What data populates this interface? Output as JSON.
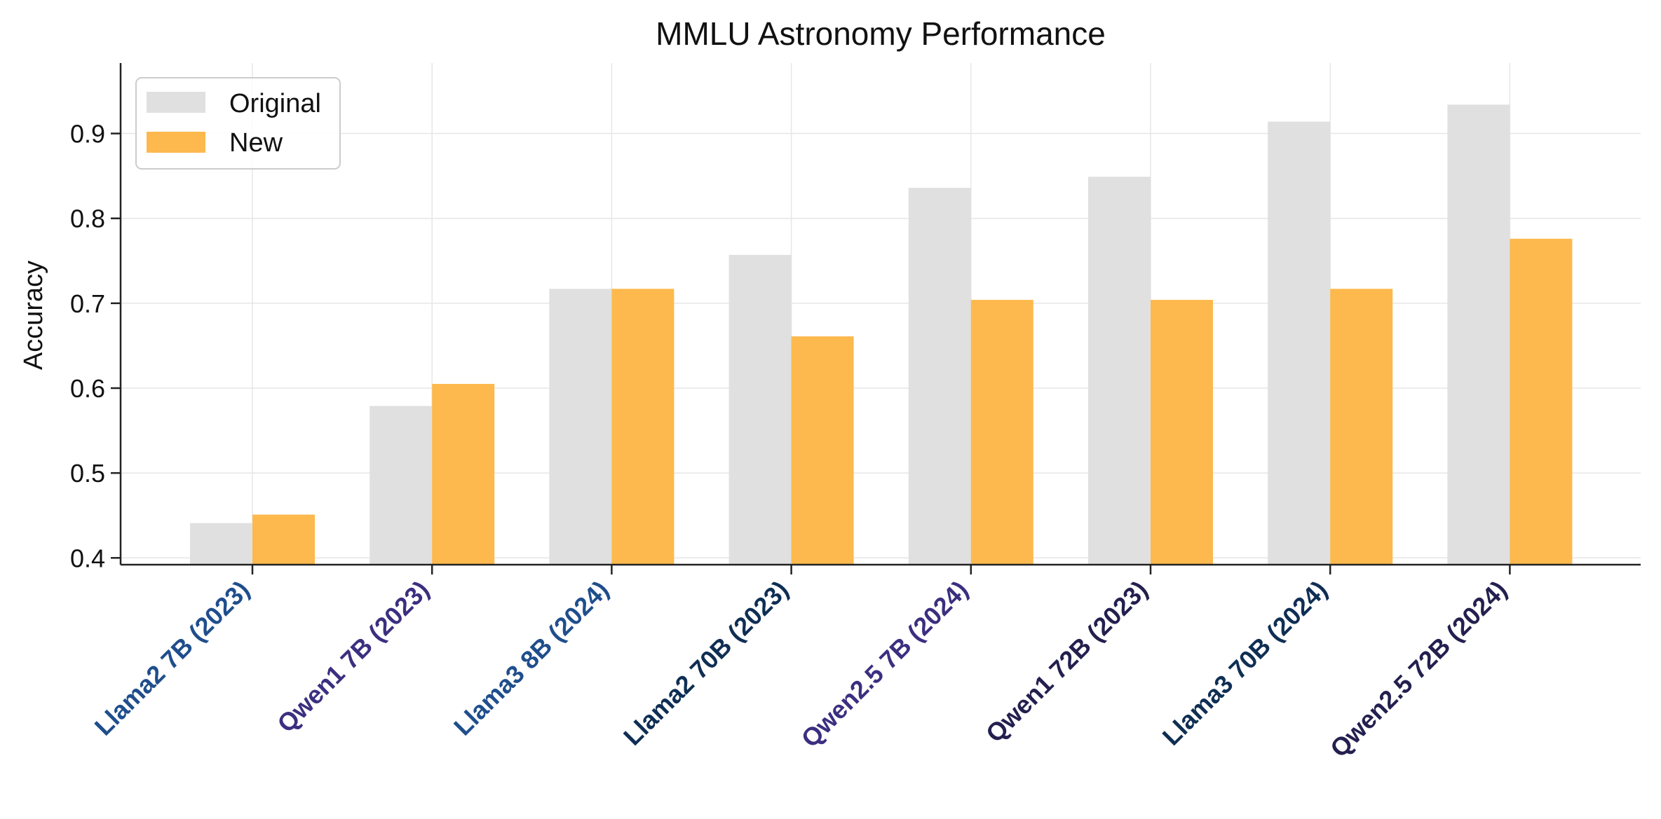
{
  "chart_data": {
    "type": "bar",
    "title": "MMLU Astronomy Performance",
    "xlabel": "",
    "ylabel": "Accuracy",
    "ylim": [
      0.392,
      0.983
    ],
    "yticks": [
      0.4,
      0.5,
      0.6,
      0.7,
      0.8,
      0.9
    ],
    "grid": true,
    "legend_position": "top-left",
    "categories": [
      "Llama2 7B (2023)",
      "Qwen1 7B (2023)",
      "Llama3 8B (2024)",
      "Llama2 70B (2023)",
      "Qwen2.5 7B (2024)",
      "Qwen1 72B (2023)",
      "Llama3 70B (2024)",
      "Qwen2.5 72B (2024)"
    ],
    "category_colors": [
      "#1f4e8c",
      "#3b2f80",
      "#1f4e8c",
      "#0f2e54",
      "#3b2f80",
      "#23204f",
      "#0f2e54",
      "#23204f"
    ],
    "series": [
      {
        "name": "Original",
        "color": "#e0e0e0",
        "values": [
          0.441,
          0.579,
          0.717,
          0.757,
          0.836,
          0.849,
          0.914,
          0.934
        ]
      },
      {
        "name": "New",
        "color": "#fdb94d",
        "values": [
          0.451,
          0.605,
          0.717,
          0.661,
          0.704,
          0.704,
          0.717,
          0.776
        ]
      }
    ]
  }
}
